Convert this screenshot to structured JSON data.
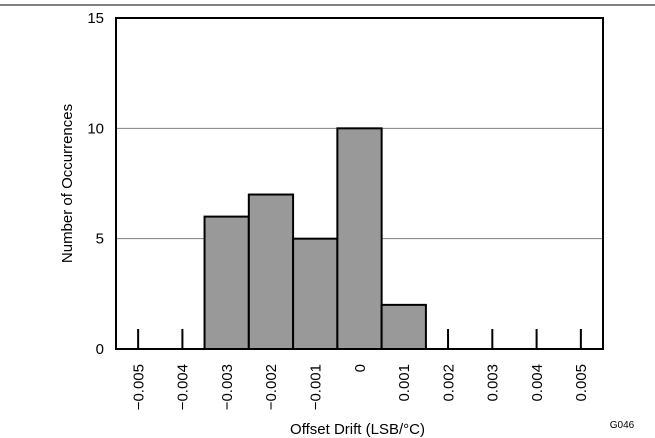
{
  "chart_data": {
    "type": "bar",
    "xlabel": "Offset Drift (LSB/°C)",
    "ylabel": "Number of Occurrences",
    "ylim": [
      0,
      15
    ],
    "xlim": [
      -0.0055,
      0.0055
    ],
    "bin_width": 0.001,
    "grid": true,
    "y_ticks": [
      "0",
      "5",
      "10",
      "15"
    ],
    "x_ticks": [
      "−0.005",
      "−0.004",
      "−0.003",
      "−0.002",
      "−0.001",
      "0",
      "0.001",
      "0.002",
      "0.003",
      "0.004",
      "0.005"
    ],
    "x_tick_values": [
      -0.005,
      -0.004,
      -0.003,
      -0.002,
      -0.001,
      0,
      0.001,
      0.002,
      0.003,
      0.004,
      0.005
    ],
    "bins": [
      -0.005,
      -0.004,
      -0.003,
      -0.002,
      -0.001,
      0,
      0.001,
      0.002,
      0.003,
      0.004,
      0.005
    ],
    "values": [
      0,
      0,
      6,
      7,
      5,
      10,
      2,
      0,
      0,
      0,
      0
    ],
    "figure_code": "G046",
    "colors": {
      "bar_fill": "#999999",
      "bar_stroke": "#000000",
      "grid": "#808080"
    }
  }
}
